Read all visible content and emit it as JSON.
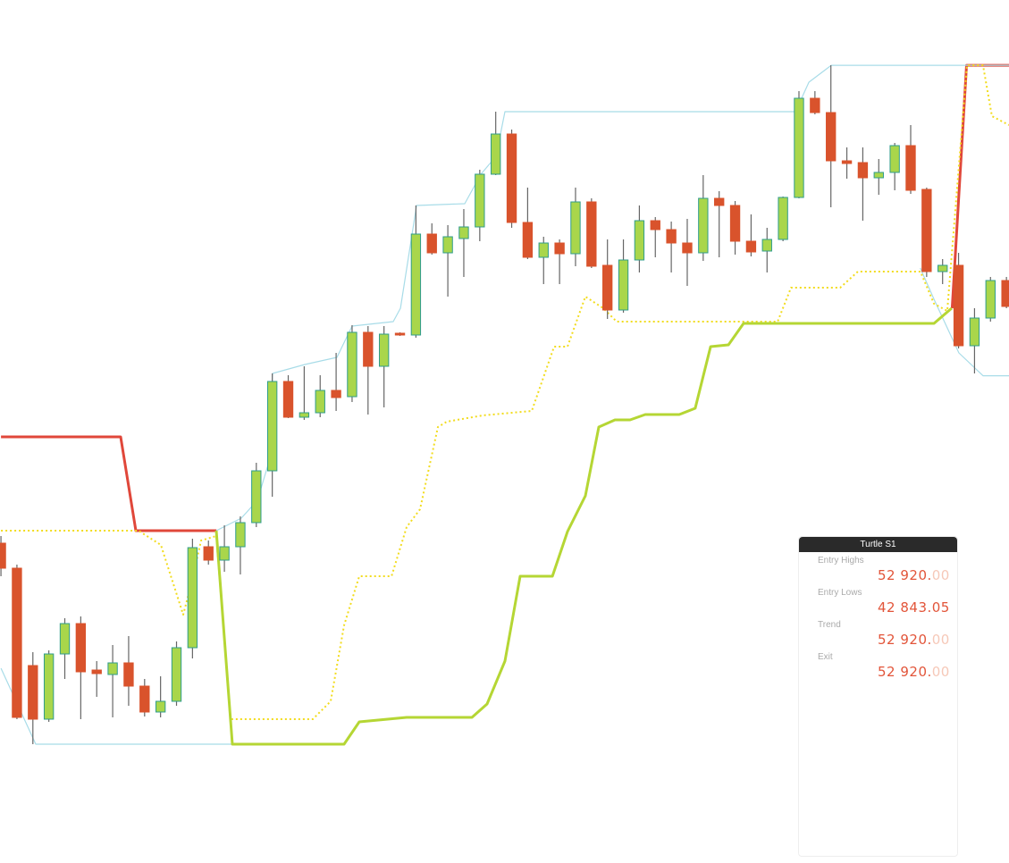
{
  "chart_data": {
    "type": "candlestick",
    "categories": [
      null,
      null,
      null,
      null,
      null,
      null,
      null,
      null,
      null,
      null,
      null,
      null,
      null,
      null,
      null,
      null,
      null,
      null,
      null,
      null,
      null,
      null,
      null,
      null,
      null,
      null,
      null,
      null,
      null,
      null,
      null,
      null,
      null,
      null,
      null,
      null,
      null,
      null,
      null,
      null,
      null,
      null,
      null,
      null,
      null,
      null,
      null,
      null,
      null,
      null,
      null,
      null,
      null,
      null,
      null,
      null,
      null,
      null,
      null,
      null,
      null,
      null,
      null,
      null
    ],
    "open": [
      37408,
      36596,
      33435,
      31695,
      33812,
      34798,
      33290,
      33145,
      33522,
      32768,
      31927,
      32275,
      34015,
      37292,
      36857,
      37292,
      38075,
      39757,
      42657,
      41497,
      41642,
      42367,
      42164,
      44252,
      43150,
      44223,
      44165,
      47442,
      46833,
      47297,
      47674,
      49385,
      50690,
      47819,
      46688,
      47152,
      46804,
      48486,
      46427,
      44977,
      46601,
      47877,
      47587,
      47152,
      46833,
      48602,
      48370,
      47210,
      46891,
      47268,
      48631,
      51850,
      51386,
      49820,
      49762,
      49269,
      49443,
      50313,
      48892,
      46224,
      46427,
      43817,
      44716,
      45934
    ],
    "high": [
      37640,
      36712,
      33870,
      33928,
      34972,
      35030,
      33580,
      34102,
      34392,
      33000,
      33087,
      34218,
      37553,
      37495,
      37988,
      38278,
      40018,
      42918,
      42860,
      43150,
      42860,
      43585,
      44484,
      44455,
      44455,
      44252,
      48370,
      47790,
      47732,
      48254,
      49530,
      51415,
      50835,
      48950,
      47355,
      47268,
      48950,
      48602,
      47268,
      47268,
      48370,
      47993,
      47848,
      47935,
      49356,
      48834,
      48515,
      48080,
      47645,
      48660,
      52082,
      52082,
      52923,
      50255,
      50255,
      49878,
      50400,
      50980,
      48950,
      46630,
      46833,
      45035,
      46050,
      46050
    ],
    "low": [
      36335,
      31695,
      30883,
      31608,
      33000,
      31695,
      32420,
      31753,
      32130,
      31782,
      31753,
      32130,
      33667,
      36712,
      36480,
      36393,
      37930,
      38916,
      41468,
      41410,
      41497,
      41700,
      41990,
      41584,
      41816,
      44136,
      44078,
      46775,
      45412,
      46050,
      47210,
      49356,
      47645,
      46630,
      45818,
      45818,
      46398,
      46340,
      44687,
      44890,
      46195,
      46688,
      46195,
      45760,
      46572,
      46688,
      46775,
      46717,
      46195,
      47210,
      48602,
      51328,
      48312,
      49240,
      47877,
      48718,
      48863,
      48747,
      46050,
      45818,
      43730,
      42918,
      44600,
      45035
    ],
    "close": [
      36596,
      31753,
      31695,
      33812,
      34798,
      33232,
      33174,
      33522,
      32768,
      31927,
      32275,
      34015,
      37263,
      36857,
      37292,
      38075,
      39757,
      42657,
      41497,
      41642,
      42367,
      42135,
      44252,
      43150,
      44194,
      44165,
      47442,
      46833,
      47355,
      47674,
      49385,
      50690,
      47819,
      46688,
      47152,
      46804,
      48486,
      46398,
      44977,
      46601,
      47877,
      47587,
      47152,
      46833,
      48602,
      48370,
      47210,
      46862,
      47268,
      48631,
      51850,
      51386,
      49820,
      49733,
      49269,
      49443,
      50313,
      48863,
      46224,
      46427,
      43817,
      44716,
      45934,
      45093
    ],
    "up_color": "#a9d64b",
    "up_border": "#2f9c8c",
    "down_color": "#d9532c",
    "wick_color": "#666666",
    "series": [
      {
        "color": "#e0473a",
        "width": 3,
        "x": [
          0,
          7.5,
          8.45,
          13.5,
          null,
          59.6,
          60.5,
          63.16
        ],
        "values": [
          40859,
          40859,
          37814,
          37814,
          null,
          45035,
          52920,
          52920
        ]
      },
      {
        "color": "#a8dce8",
        "width": 1.2,
        "x": [
          13.49,
          15.06,
          16.07,
          16.74,
          17.02,
          19.04,
          21.05,
          22.0,
          24.58,
          25.03,
          26.04,
          29.06,
          30.07,
          31.02,
          31.58,
          49.78,
          50.62,
          52.02,
          63.16
        ],
        "values": [
          37814,
          38220,
          38800,
          39960,
          42918,
          43208,
          43440,
          44455,
          44600,
          45035,
          48370,
          48428,
          49385,
          49965,
          51415,
          51415,
          52372,
          52920,
          52920
        ]
      },
      {
        "color": "#a8dce8",
        "width": 1.2,
        "x": [
          0,
          2.18,
          14.5,
          null,
          57.6,
          58.46,
          60.02,
          61.53,
          63.16
        ],
        "values": [
          33348,
          30883,
          30883,
          null,
          46340,
          45325,
          43585,
          42843,
          42843
        ]
      },
      {
        "color": "#f2dc1e",
        "width": 2,
        "dash": true,
        "x": [
          0,
          8.62,
          10.02,
          11.42,
          11.98,
          12.54,
          13.49,
          14.39,
          19.54,
          20.66,
          21.5,
          22.45,
          24.47,
          25.42,
          26.26,
          27.38,
          27.94,
          30.18,
          33.26,
          34.66,
          35.5,
          36.62,
          37.74,
          38.58,
          48.66,
          49.5,
          52.58,
          53.69,
          57.61,
          58.46,
          59.29,
          60.53,
          61.53,
          62.09,
          63.16
        ],
        "values": [
          37814,
          37814,
          37350,
          35088,
          36190,
          37495,
          37640,
          31695,
          31695,
          32275,
          34740,
          36335,
          36335,
          37930,
          38510,
          41178,
          41352,
          41555,
          41700,
          43788,
          43788,
          45412,
          45035,
          44600,
          44600,
          45702,
          45702,
          46224,
          46224,
          45180,
          44948,
          52920,
          52920,
          51270,
          50980
        ]
      },
      {
        "color": "#b5d634",
        "width": 3,
        "x": [
          13.49,
          14.5,
          21.5,
          22.45,
          25.42,
          29.51,
          30.46,
          31.58,
          32.53,
          34.55,
          35.5,
          36.62,
          37.46,
          38.47,
          39.42,
          40.37,
          42.5,
          43.5,
          44.46,
          45.58,
          46.53,
          58.46,
          59.57
        ],
        "values": [
          37814,
          30883,
          30883,
          31608,
          31753,
          31753,
          32188,
          33580,
          36335,
          36335,
          37785,
          38945,
          41178,
          41410,
          41410,
          41584,
          41584,
          41787,
          43788,
          43846,
          44542,
          44542,
          45035
        ]
      }
    ],
    "xlim": [
      -0.06,
      63.16
    ],
    "ylim": [
      27026,
      55040
    ]
  },
  "panel": {
    "title": "Turtle S1",
    "rows": [
      {
        "label": "Entry Highs",
        "main": "52 920.",
        "faded": "00"
      },
      {
        "label": "Entry Lows",
        "main": "42 843.05"
      },
      {
        "label": "Trend",
        "main": "52 920.",
        "faded": "00"
      },
      {
        "label": "Exit",
        "main": "52 920.",
        "faded": "00"
      }
    ]
  }
}
